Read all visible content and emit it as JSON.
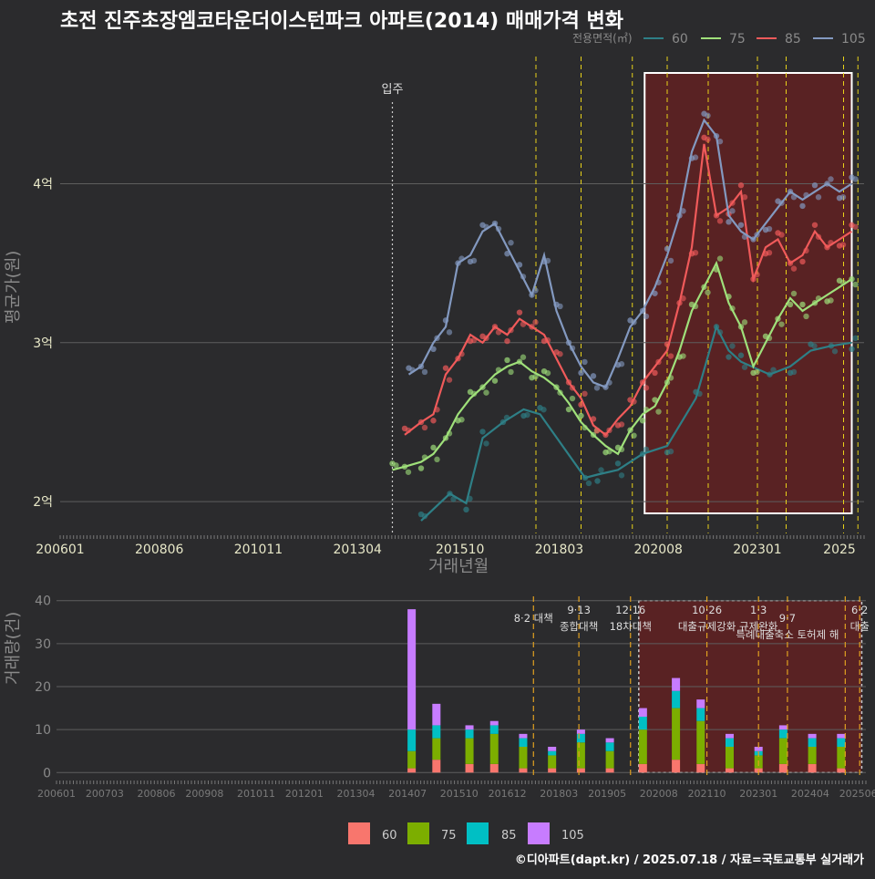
{
  "title": "초전 진주초장엠코타운더이스턴파크 아파트(2014) 매매가격 변화",
  "footer": "©디아파트(dapt.kr) / 2025.07.18 / 자료=국토교통부 실거래가",
  "colors": {
    "bg": "#2b2b2d",
    "grid": "#5e5e5e",
    "text_dim": "#8a8a8a",
    "axis_text": "#e8e8c8",
    "s60": "#2e7f86",
    "s75": "#9fe07a",
    "s85": "#f05a5a",
    "s105": "#8399c0",
    "b60": "#f8766d",
    "b75": "#7cae00",
    "b85": "#00bfc4",
    "b105": "#c77cff",
    "policy": "#e8d21a",
    "highlight": "#6a2020"
  },
  "chart_data": [
    {
      "type": "line",
      "title": "초전 진주초장엠코타운더이스턴파크 아파트(2014) 매매가격 변화",
      "xlabel": "거래년월",
      "ylabel": "평균가(원)",
      "x_ticks": [
        "200601",
        "200806",
        "201011",
        "201304",
        "201510",
        "201803",
        "202008",
        "202301",
        "2025"
      ],
      "y_ticks": [
        {
          "value": 2,
          "label": "2억"
        },
        {
          "value": 3,
          "label": "3억"
        },
        {
          "value": 4,
          "label": "4억"
        }
      ],
      "ylim": [
        1.8,
        4.8
      ],
      "xlim": [
        2006.0,
        2025.6
      ],
      "legend_title": "전용면적(㎡)",
      "legend": [
        "60",
        "75",
        "85",
        "105"
      ],
      "annotation": "입주",
      "annotation_x": 2014.1,
      "policy_x": [
        2017.6,
        2018.7,
        2019.95,
        2020.8,
        2021.8,
        2023.0,
        2023.7,
        2025.1,
        2025.45
      ],
      "highlight_x": [
        2020.25,
        2025.3
      ],
      "series": [
        {
          "name": "60",
          "x": [
            2014.8,
            2015.5,
            2015.9,
            2016.3,
            2016.8,
            2017.3,
            2017.7,
            2018.8,
            2019.1,
            2019.6,
            2020.2,
            2020.8,
            2021.5,
            2022.0,
            2022.3,
            2022.6,
            2023.3,
            2023.8,
            2024.3,
            2024.8,
            2025.3
          ],
          "y": [
            1.88,
            2.05,
            1.99,
            2.4,
            2.5,
            2.58,
            2.55,
            2.15,
            2.17,
            2.2,
            2.3,
            2.35,
            2.65,
            3.1,
            2.95,
            2.88,
            2.8,
            2.85,
            2.95,
            2.98,
            3.0
          ]
        },
        {
          "name": "75",
          "x": [
            2014.1,
            2014.4,
            2014.8,
            2015.1,
            2015.4,
            2015.7,
            2016.0,
            2016.3,
            2016.6,
            2016.9,
            2017.2,
            2017.5,
            2017.8,
            2018.1,
            2018.4,
            2018.7,
            2019.0,
            2019.3,
            2019.6,
            2019.9,
            2020.2,
            2020.5,
            2020.8,
            2021.1,
            2021.4,
            2021.7,
            2022.0,
            2022.3,
            2022.6,
            2022.9,
            2023.2,
            2023.5,
            2023.8,
            2024.1,
            2024.4,
            2024.7,
            2025.0,
            2025.3
          ],
          "y": [
            2.2,
            2.22,
            2.25,
            2.3,
            2.4,
            2.55,
            2.65,
            2.72,
            2.8,
            2.85,
            2.88,
            2.82,
            2.78,
            2.72,
            2.62,
            2.5,
            2.42,
            2.35,
            2.3,
            2.45,
            2.55,
            2.6,
            2.75,
            2.95,
            3.2,
            3.35,
            3.5,
            3.25,
            3.1,
            2.85,
            3.0,
            3.15,
            3.28,
            3.2,
            3.25,
            3.3,
            3.35,
            3.4
          ]
        },
        {
          "name": "85",
          "x": [
            2014.4,
            2014.8,
            2015.1,
            2015.4,
            2015.7,
            2016.0,
            2016.3,
            2016.6,
            2016.9,
            2017.2,
            2017.5,
            2017.8,
            2018.1,
            2018.4,
            2018.7,
            2019.0,
            2019.3,
            2019.6,
            2019.9,
            2020.2,
            2020.5,
            2020.8,
            2021.1,
            2021.4,
            2021.7,
            2022.0,
            2022.3,
            2022.6,
            2022.9,
            2023.2,
            2023.5,
            2023.8,
            2024.1,
            2024.4,
            2024.7,
            2025.0,
            2025.3
          ],
          "y": [
            2.42,
            2.5,
            2.55,
            2.8,
            2.9,
            3.05,
            3.0,
            3.1,
            3.05,
            3.15,
            3.1,
            3.05,
            2.9,
            2.75,
            2.65,
            2.48,
            2.42,
            2.52,
            2.6,
            2.75,
            2.85,
            2.95,
            3.25,
            3.6,
            4.25,
            3.8,
            3.85,
            3.95,
            3.4,
            3.6,
            3.65,
            3.5,
            3.55,
            3.7,
            3.6,
            3.65,
            3.7
          ]
        },
        {
          "name": "105",
          "x": [
            2014.5,
            2014.8,
            2015.1,
            2015.4,
            2015.7,
            2016.0,
            2016.3,
            2016.6,
            2016.9,
            2017.2,
            2017.5,
            2017.8,
            2018.1,
            2018.4,
            2018.7,
            2019.0,
            2019.3,
            2019.6,
            2019.9,
            2020.2,
            2020.5,
            2020.8,
            2021.1,
            2021.4,
            2021.7,
            2022.0,
            2022.3,
            2022.6,
            2022.9,
            2023.2,
            2023.5,
            2023.8,
            2024.1,
            2024.4,
            2024.7,
            2025.0,
            2025.3
          ],
          "y": [
            2.8,
            2.85,
            3.0,
            3.1,
            3.5,
            3.55,
            3.7,
            3.75,
            3.6,
            3.45,
            3.3,
            3.55,
            3.2,
            3.0,
            2.85,
            2.75,
            2.72,
            2.9,
            3.1,
            3.2,
            3.35,
            3.55,
            3.8,
            4.2,
            4.4,
            4.3,
            3.8,
            3.7,
            3.65,
            3.75,
            3.85,
            3.95,
            3.9,
            3.95,
            4.0,
            3.95,
            4.0
          ]
        }
      ]
    },
    {
      "type": "bar",
      "stacked": true,
      "xlabel": "",
      "ylabel": "거래량(건)",
      "x_ticks": [
        "200601",
        "200703",
        "200806",
        "200908",
        "201011",
        "201201",
        "201304",
        "201407",
        "201510",
        "201612",
        "201803",
        "201905",
        "202008",
        "202110",
        "202301",
        "202404",
        "202506"
      ],
      "y_ticks": [
        0,
        10,
        20,
        30,
        40
      ],
      "ylim": [
        -1,
        41
      ],
      "xlim": [
        2006.0,
        2025.6
      ],
      "legend": [
        "60",
        "75",
        "85",
        "105"
      ],
      "policy_x": [
        2017.55,
        2018.65,
        2019.9,
        2021.75,
        2023.0,
        2023.7,
        2025.1,
        2025.45
      ],
      "policy_labels": [
        {
          "x": 2017.55,
          "lines": [
            "8·2 대책"
          ],
          "row": 1
        },
        {
          "x": 2018.65,
          "lines": [
            "9·13",
            "종합대책"
          ],
          "row": 0
        },
        {
          "x": 2019.9,
          "lines": [
            "12·16",
            "18차대책"
          ],
          "row": 0
        },
        {
          "x": 2021.75,
          "lines": [
            "10·26",
            "대출규제강화"
          ],
          "row": 0
        },
        {
          "x": 2023.0,
          "lines": [
            "1·3",
            "규제완화"
          ],
          "row": 0
        },
        {
          "x": 2023.7,
          "lines": [
            "9·7",
            "특례대출축소 토허제 해"
          ],
          "row": 1
        },
        {
          "x": 2025.45,
          "lines": [
            "6·2",
            "대출"
          ],
          "row": 0
        }
      ],
      "highlight_x": [
        2020.1,
        2025.5
      ],
      "series": [
        {
          "name": "60",
          "x": [
            2014.6,
            2015.2,
            2016.0,
            2016.6,
            2017.3,
            2018.0,
            2018.7,
            2019.4,
            2020.2,
            2021.0,
            2021.6,
            2022.3,
            2023.0,
            2023.6,
            2024.3,
            2025.0
          ],
          "values": [
            1,
            3,
            2,
            2,
            1,
            1,
            1,
            1,
            2,
            3,
            2,
            1,
            1,
            2,
            2,
            1
          ]
        },
        {
          "name": "75",
          "x": [
            2014.6,
            2015.2,
            2016.0,
            2016.6,
            2017.3,
            2018.0,
            2018.7,
            2019.4,
            2020.2,
            2021.0,
            2021.6,
            2022.3,
            2023.0,
            2023.6,
            2024.3,
            2025.0
          ],
          "values": [
            4,
            5,
            6,
            7,
            5,
            3,
            6,
            4,
            8,
            12,
            10,
            5,
            3,
            6,
            4,
            5
          ]
        },
        {
          "name": "85",
          "x": [
            2014.6,
            2015.2,
            2016.0,
            2016.6,
            2017.3,
            2018.0,
            2018.7,
            2019.4,
            2020.2,
            2021.0,
            2021.6,
            2022.3,
            2023.0,
            2023.6,
            2024.3,
            2025.0
          ],
          "values": [
            5,
            3,
            2,
            2,
            2,
            1,
            2,
            2,
            3,
            4,
            3,
            2,
            1,
            2,
            2,
            2
          ]
        },
        {
          "name": "105",
          "x": [
            2014.6,
            2015.2,
            2016.0,
            2016.6,
            2017.3,
            2018.0,
            2018.7,
            2019.4,
            2020.2,
            2021.0,
            2021.6,
            2022.3,
            2023.0,
            2023.6,
            2024.3,
            2025.0
          ],
          "values": [
            28,
            5,
            1,
            1,
            1,
            1,
            1,
            1,
            2,
            3,
            2,
            1,
            1,
            1,
            1,
            1
          ]
        }
      ]
    }
  ]
}
